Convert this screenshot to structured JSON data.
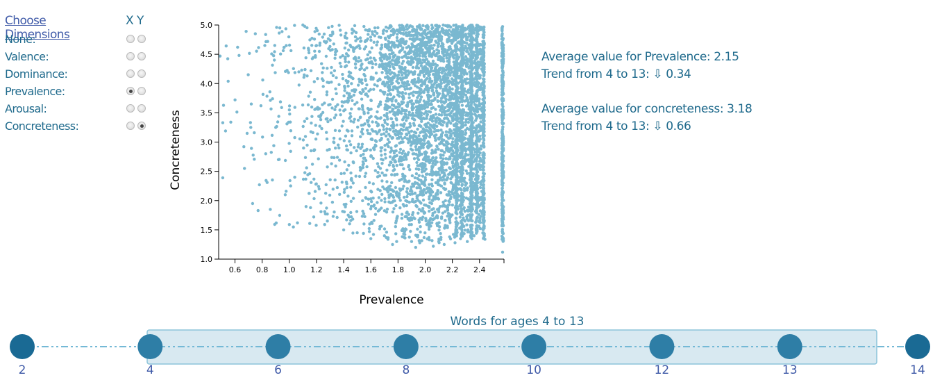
{
  "dimensions": {
    "title": "Choose Dimensions",
    "x_header": "X",
    "y_header": "Y",
    "items": [
      {
        "label": "None:",
        "x_selected": false,
        "y_selected": false
      },
      {
        "label": "Valence:",
        "x_selected": false,
        "y_selected": false
      },
      {
        "label": "Dominance:",
        "x_selected": false,
        "y_selected": false
      },
      {
        "label": "Prevalence:",
        "x_selected": true,
        "y_selected": false
      },
      {
        "label": "Arousal:",
        "x_selected": false,
        "y_selected": false
      },
      {
        "label": "Concreteness:",
        "x_selected": false,
        "y_selected": true
      }
    ]
  },
  "chart_data": {
    "type": "scatter",
    "xlabel": "Prevalence",
    "ylabel": "Concreteness",
    "xlim": [
      0.48,
      2.58
    ],
    "ylim": [
      1.0,
      5.0
    ],
    "xticks": [
      "0.6",
      "0.8",
      "1.0",
      "1.2",
      "1.4",
      "1.6",
      "1.8",
      "2.0",
      "2.2",
      "2.4"
    ],
    "yticks": [
      "1.0",
      "1.5",
      "2.0",
      "2.5",
      "3.0",
      "3.5",
      "4.0",
      "4.5",
      "5.0"
    ],
    "grid": false,
    "color": "#7ab8d0",
    "points": [
      [
        0.49,
        4.47
      ],
      [
        0.51,
        3.33
      ],
      [
        0.51,
        2.39
      ],
      [
        0.55,
        4.04
      ],
      [
        0.63,
        4.48
      ],
      [
        0.67,
        2.55
      ],
      [
        0.72,
        3.65
      ],
      [
        0.73,
        1.95
      ],
      [
        0.75,
        4.85
      ],
      [
        0.77,
        1.83
      ],
      [
        0.78,
        2.27
      ],
      [
        0.82,
        4.65
      ],
      [
        0.86,
        1.85
      ],
      [
        0.89,
        4.4
      ],
      [
        0.9,
        3.25
      ],
      [
        0.92,
        2.7
      ],
      [
        0.93,
        4.95
      ],
      [
        0.97,
        2.1
      ],
      [
        1.0,
        3.55
      ],
      [
        1.03,
        1.55
      ],
      [
        1.04,
        2.4
      ],
      [
        1.06,
        1.62
      ],
      [
        1.07,
        4.2
      ],
      [
        1.1,
        5.0
      ],
      [
        1.13,
        3.4
      ],
      [
        1.16,
        2.85
      ],
      [
        1.18,
        1.72
      ],
      [
        1.2,
        4.65
      ],
      [
        1.22,
        2.2
      ],
      [
        1.25,
        3.95
      ],
      [
        1.28,
        1.65
      ],
      [
        1.32,
        4.85
      ],
      [
        1.36,
        2.95
      ],
      [
        1.4,
        1.5
      ],
      [
        1.44,
        3.8
      ],
      [
        1.47,
        2.3
      ],
      [
        1.5,
        1.45
      ],
      [
        1.52,
        4.6
      ],
      [
        1.55,
        1.6
      ],
      [
        1.58,
        3.15
      ],
      [
        1.6,
        1.35
      ],
      [
        1.63,
        4.95
      ],
      [
        1.66,
        2.05
      ],
      [
        1.7,
        1.4
      ],
      [
        1.73,
        3.6
      ],
      [
        1.76,
        1.25
      ],
      [
        1.79,
        1.3
      ],
      [
        1.82,
        4.75
      ],
      [
        1.85,
        1.42
      ],
      [
        1.88,
        2.6
      ],
      [
        1.9,
        1.3
      ],
      [
        1.93,
        1.2
      ],
      [
        1.96,
        1.28
      ],
      [
        2.0,
        3.9
      ],
      [
        2.03,
        1.33
      ],
      [
        2.06,
        1.22
      ],
      [
        2.1,
        1.3
      ],
      [
        2.14,
        1.25
      ],
      [
        2.18,
        1.38
      ],
      [
        2.22,
        1.28
      ],
      [
        2.26,
        1.35
      ],
      [
        2.31,
        1.3
      ],
      [
        2.36,
        1.4
      ],
      [
        2.44,
        1.34
      ],
      [
        2.57,
        1.12
      ]
    ],
    "density": [
      {
        "x_range": [
          0.48,
          0.8
        ],
        "y_range": [
          1.8,
          4.9
        ],
        "count": 22
      },
      {
        "x_range": [
          0.8,
          1.1
        ],
        "y_range": [
          1.5,
          5.0
        ],
        "count": 70
      },
      {
        "x_range": [
          1.1,
          1.4
        ],
        "y_range": [
          1.5,
          5.0
        ],
        "count": 200
      },
      {
        "x_range": [
          1.4,
          1.7
        ],
        "y_range": [
          1.4,
          5.0
        ],
        "count": 420
      },
      {
        "x_range": [
          1.7,
          1.95
        ],
        "y_range": [
          1.3,
          5.0
        ],
        "count": 800
      },
      {
        "x_range": [
          1.95,
          2.2
        ],
        "y_range": [
          1.25,
          5.0
        ],
        "count": 1100
      },
      {
        "x_range": [
          2.2,
          2.42
        ],
        "y_range": [
          1.35,
          5.0
        ],
        "count": 900
      }
    ],
    "columns": [
      {
        "x": 2.23,
        "y_range": [
          1.35,
          5.0
        ],
        "count": 260
      },
      {
        "x": 2.27,
        "y_range": [
          1.38,
          5.0
        ],
        "count": 180
      },
      {
        "x": 2.34,
        "y_range": [
          1.35,
          5.0
        ],
        "count": 320
      },
      {
        "x": 2.38,
        "y_range": [
          1.4,
          5.0
        ],
        "count": 160
      },
      {
        "x": 2.43,
        "y_range": [
          1.35,
          5.0
        ],
        "count": 260
      },
      {
        "x": 2.57,
        "y_range": [
          1.3,
          5.0
        ],
        "count": 340
      }
    ]
  },
  "stats": [
    {
      "line1": "Average value for Prevalence: 2.15",
      "line2": "Trend from 4 to 13: ⇩ 0.34"
    },
    {
      "line1": "Average value for concreteness: 3.18",
      "line2": "Trend from 4 to 13: ⇩ 0.66"
    }
  ],
  "timeline": {
    "range_label": "Words for ages 4 to 13",
    "ages": [
      "2",
      "4",
      "6",
      "8",
      "10",
      "12",
      "13",
      "14"
    ],
    "selected_range": [
      "4",
      "13"
    ],
    "colors": {
      "node_inside": "#2e7ea6",
      "node_outside": "#1a6a94",
      "band_fill": "#d4e7f0",
      "band_stroke": "#8cc4da",
      "line": "#74b9d6"
    }
  }
}
